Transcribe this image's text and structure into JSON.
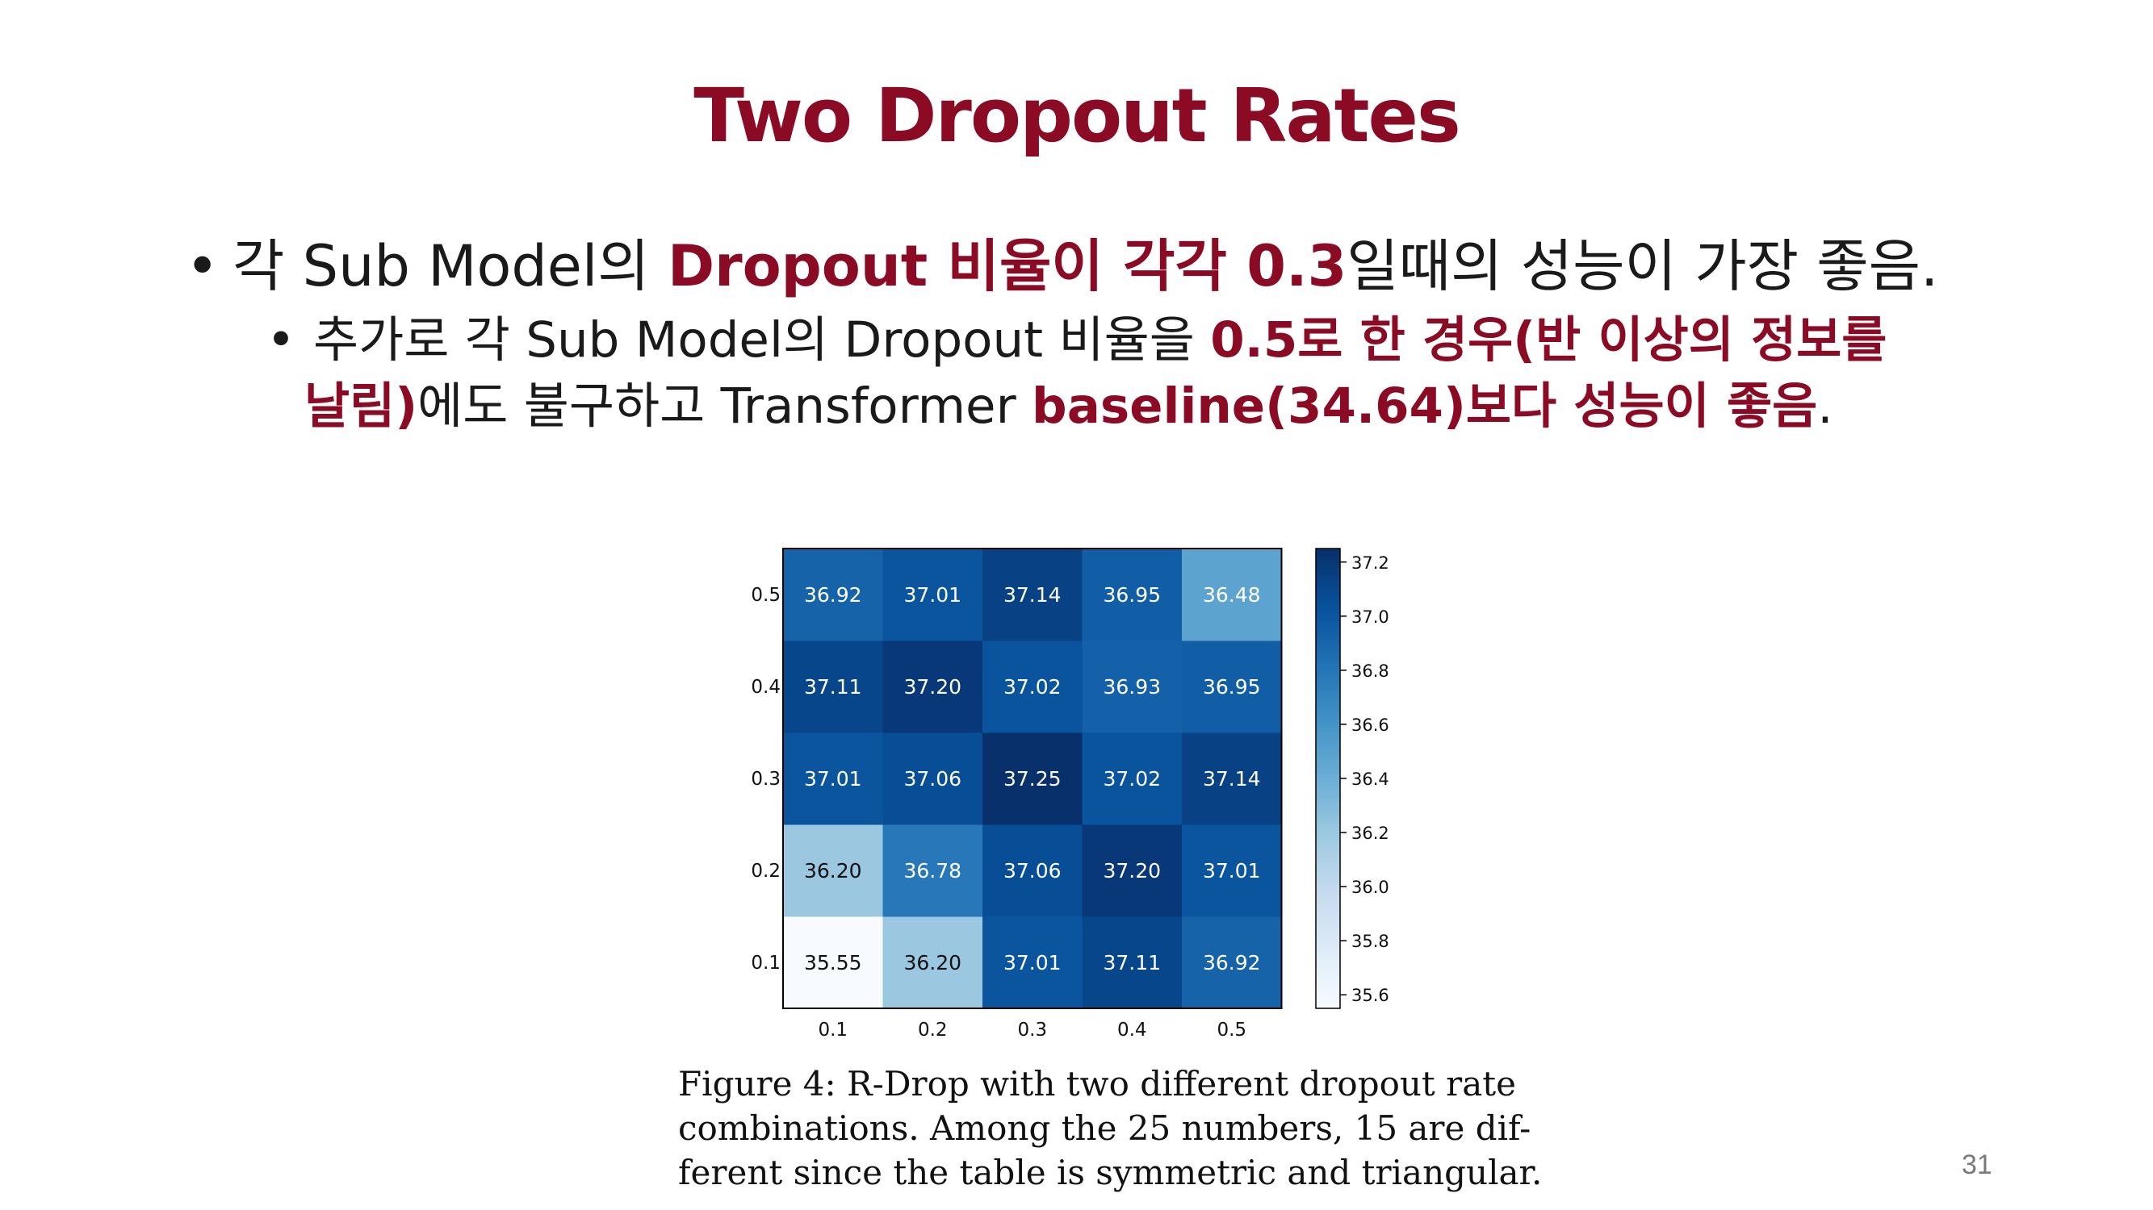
{
  "title": "Two Dropout Rates",
  "bullet1": {
    "marker": "•",
    "part1": "각 Sub Model의 ",
    "highlight1": "Dropout 비율이 각각 0.3",
    "part2": "일때의 성능이 가장 좋음."
  },
  "bullet2": {
    "marker": "•",
    "part1": "추가로 각 Sub Model의 Dropout 비율을 ",
    "highlight1": "0.5로 한 경우(반 이상의 정보를",
    "highlight2": "날림)",
    "part2": "에도 불구하고 Transformer ",
    "highlight3": "baseline(34.64)보다 성능이 좋음",
    "part3": "."
  },
  "caption": {
    "line1": "Figure 4: R-Drop with two different dropout rate",
    "line2": "combinations. Among the 25 numbers, 15 are dif-",
    "line3": "ferent since the table is symmetric and triangular."
  },
  "page_number": "31",
  "colors": {
    "accent": "#8b0b24",
    "cmap_low": "#f7fbff",
    "cmap_high": "#08306b"
  },
  "chart_data": {
    "type": "heatmap",
    "colormap": "Blues",
    "x": [
      "0.1",
      "0.2",
      "0.3",
      "0.4",
      "0.5"
    ],
    "y": [
      "0.1",
      "0.2",
      "0.3",
      "0.4",
      "0.5"
    ],
    "values": [
      [
        35.55,
        36.2,
        37.01,
        37.11,
        36.92
      ],
      [
        36.2,
        36.78,
        37.06,
        37.2,
        37.01
      ],
      [
        37.01,
        37.06,
        37.25,
        37.02,
        37.14
      ],
      [
        37.11,
        37.2,
        37.02,
        36.93,
        36.95
      ],
      [
        36.92,
        37.01,
        37.14,
        36.95,
        36.48
      ]
    ],
    "color_range": [
      35.55,
      37.25
    ],
    "colorbar_ticks": [
      "35.6",
      "35.8",
      "36.0",
      "36.2",
      "36.4",
      "36.6",
      "36.8",
      "37.0",
      "37.2"
    ]
  }
}
